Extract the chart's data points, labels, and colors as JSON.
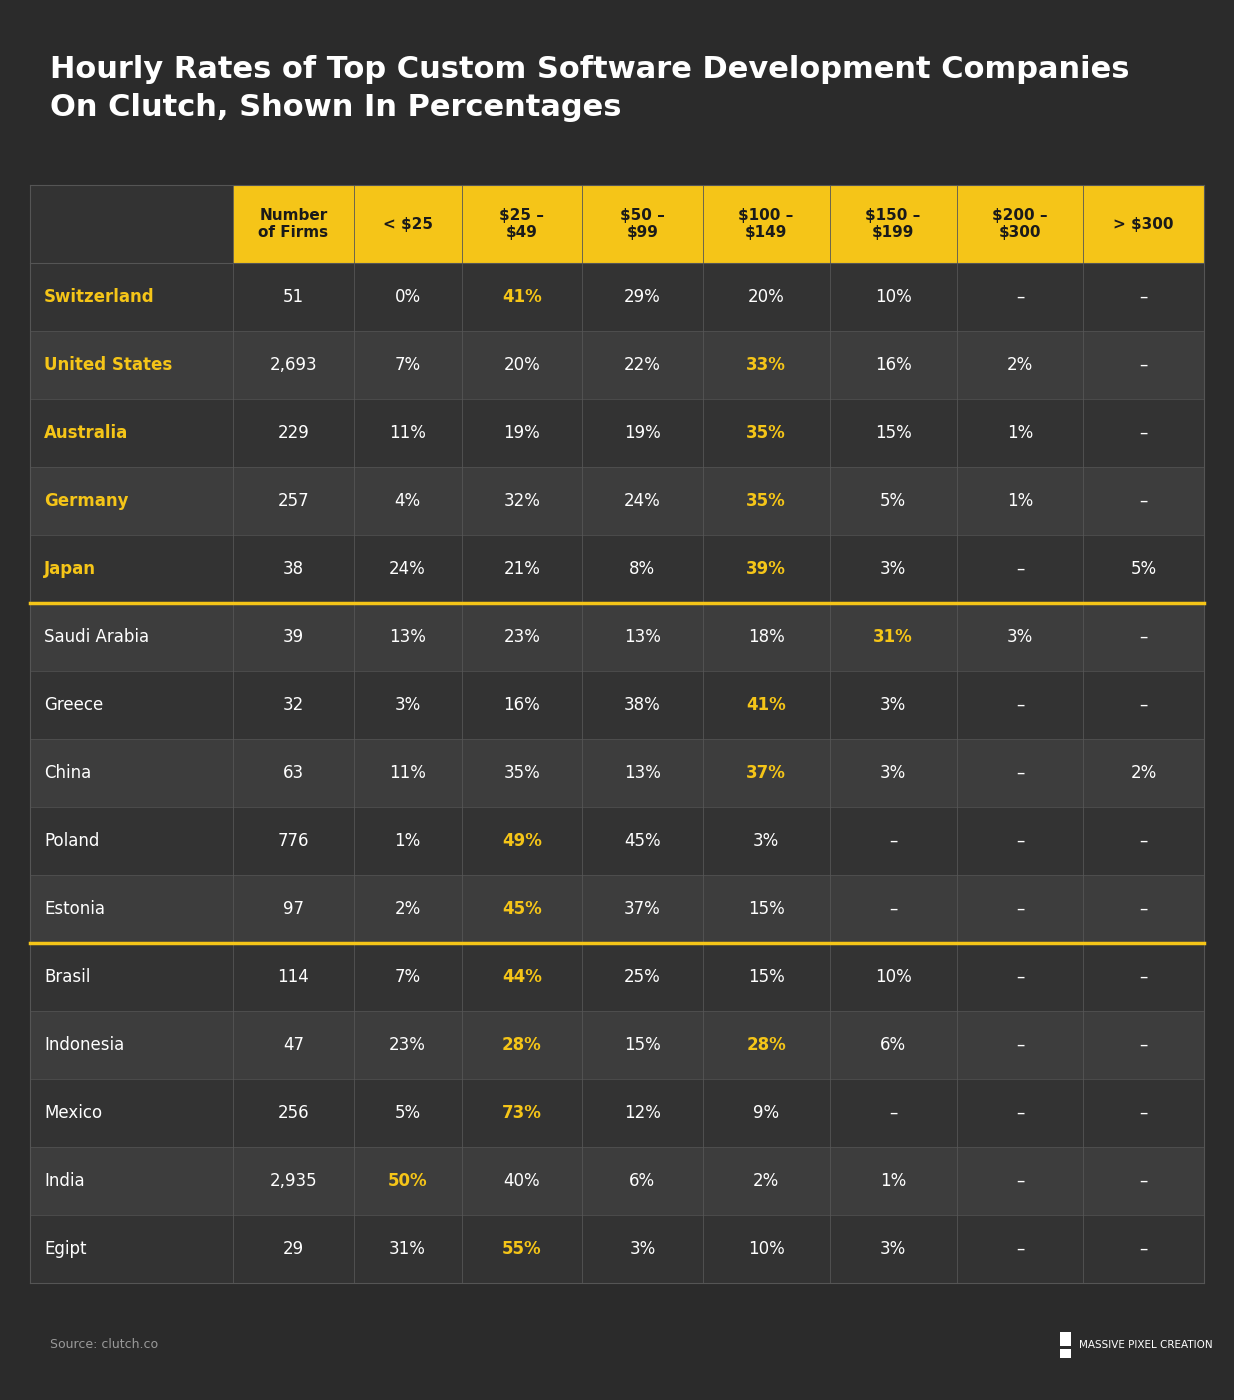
{
  "title": "Hourly Rates of Top Custom Software Development Companies\nOn Clutch, Shown In Percentages",
  "bg_color": "#2b2b2b",
  "header_bg": "#f5c518",
  "header_text_color": "#1a1a1a",
  "row_bg_dark": "#333333",
  "row_bg_light": "#3d3d3d",
  "separator_color": "#f5c518",
  "text_color_white": "#ffffff",
  "text_color_yellow": "#f5c518",
  "columns": [
    "Number\nof Firms",
    "< $25",
    "$25 –\n$49",
    "$50 –\n$99",
    "$100 –\n$149",
    "$150 –\n$199",
    "$200 –\n$300",
    "> $300"
  ],
  "rows": [
    {
      "country": "Switzerland",
      "group": 0,
      "country_yellow": true,
      "data": [
        "51",
        "0%",
        "41%",
        "29%",
        "20%",
        "10%",
        "–",
        "–"
      ],
      "bold_cols": [
        2
      ]
    },
    {
      "country": "United States",
      "group": 0,
      "country_yellow": true,
      "data": [
        "2,693",
        "7%",
        "20%",
        "22%",
        "33%",
        "16%",
        "2%",
        "–"
      ],
      "bold_cols": [
        4
      ]
    },
    {
      "country": "Australia",
      "group": 0,
      "country_yellow": true,
      "data": [
        "229",
        "11%",
        "19%",
        "19%",
        "35%",
        "15%",
        "1%",
        "–"
      ],
      "bold_cols": [
        4
      ]
    },
    {
      "country": "Germany",
      "group": 0,
      "country_yellow": true,
      "data": [
        "257",
        "4%",
        "32%",
        "24%",
        "35%",
        "5%",
        "1%",
        "–"
      ],
      "bold_cols": [
        4
      ]
    },
    {
      "country": "Japan",
      "group": 0,
      "country_yellow": true,
      "data": [
        "38",
        "24%",
        "21%",
        "8%",
        "39%",
        "3%",
        "–",
        "5%"
      ],
      "bold_cols": [
        4
      ]
    },
    {
      "country": "Saudi Arabia",
      "group": 1,
      "country_yellow": false,
      "data": [
        "39",
        "13%",
        "23%",
        "13%",
        "18%",
        "31%",
        "3%",
        "–"
      ],
      "bold_cols": [
        5
      ]
    },
    {
      "country": "Greece",
      "group": 1,
      "country_yellow": false,
      "data": [
        "32",
        "3%",
        "16%",
        "38%",
        "41%",
        "3%",
        "–",
        "–"
      ],
      "bold_cols": [
        4
      ]
    },
    {
      "country": "China",
      "group": 1,
      "country_yellow": false,
      "data": [
        "63",
        "11%",
        "35%",
        "13%",
        "37%",
        "3%",
        "–",
        "2%"
      ],
      "bold_cols": [
        4
      ]
    },
    {
      "country": "Poland",
      "group": 1,
      "country_yellow": false,
      "data": [
        "776",
        "1%",
        "49%",
        "45%",
        "3%",
        "–",
        "–",
        "–"
      ],
      "bold_cols": [
        2
      ]
    },
    {
      "country": "Estonia",
      "group": 1,
      "country_yellow": false,
      "data": [
        "97",
        "2%",
        "45%",
        "37%",
        "15%",
        "–",
        "–",
        "–"
      ],
      "bold_cols": [
        2
      ]
    },
    {
      "country": "Brasil",
      "group": 2,
      "country_yellow": false,
      "data": [
        "114",
        "7%",
        "44%",
        "25%",
        "15%",
        "10%",
        "–",
        "–"
      ],
      "bold_cols": [
        2
      ]
    },
    {
      "country": "Indonesia",
      "group": 2,
      "country_yellow": false,
      "data": [
        "47",
        "23%",
        "28%",
        "15%",
        "28%",
        "6%",
        "–",
        "–"
      ],
      "bold_cols": [
        2,
        4
      ]
    },
    {
      "country": "Mexico",
      "group": 2,
      "country_yellow": false,
      "data": [
        "256",
        "5%",
        "73%",
        "12%",
        "9%",
        "–",
        "–",
        "–"
      ],
      "bold_cols": [
        2
      ]
    },
    {
      "country": "India",
      "group": 2,
      "country_yellow": false,
      "data": [
        "2,935",
        "50%",
        "40%",
        "6%",
        "2%",
        "1%",
        "–",
        "–"
      ],
      "bold_cols": [
        1
      ]
    },
    {
      "country": "Egipt",
      "group": 2,
      "country_yellow": false,
      "data": [
        "29",
        "31%",
        "55%",
        "3%",
        "10%",
        "3%",
        "–",
        "–"
      ],
      "bold_cols": [
        2
      ]
    }
  ],
  "source_text": "Source: clutch.co",
  "brand_text": "MASSIVE PIXEL CREATION"
}
